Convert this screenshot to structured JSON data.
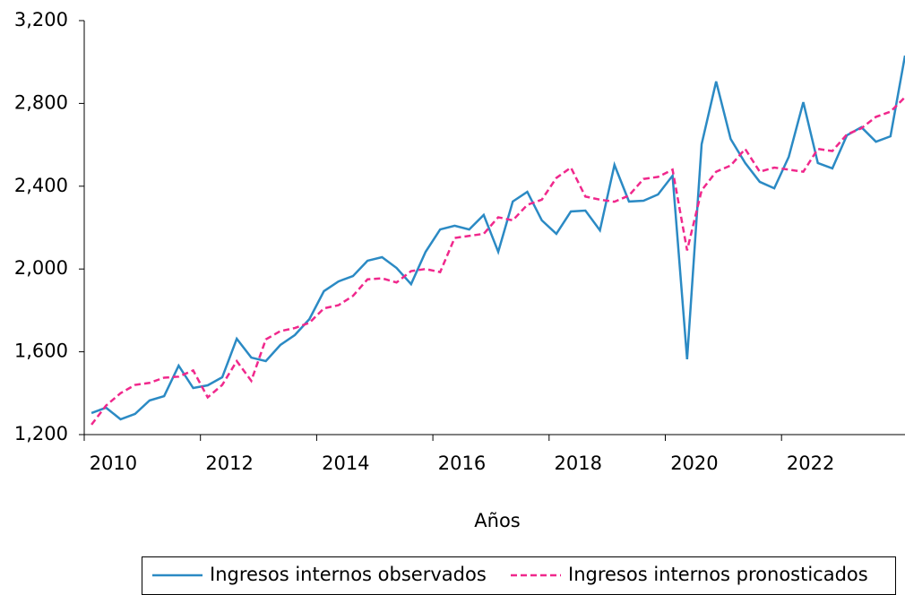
{
  "chart_data": {
    "type": "line",
    "x_label": "Años",
    "x": [
      2010,
      2010.25,
      2010.5,
      2010.75,
      2011,
      2011.25,
      2011.5,
      2011.75,
      2012,
      2012.25,
      2012.5,
      2012.75,
      2013,
      2013.25,
      2013.5,
      2013.75,
      2014,
      2014.25,
      2014.5,
      2014.75,
      2015,
      2015.25,
      2015.5,
      2015.75,
      2016,
      2016.25,
      2016.5,
      2016.75,
      2017,
      2017.25,
      2017.5,
      2017.75,
      2018,
      2018.25,
      2018.5,
      2018.75,
      2019,
      2019.25,
      2019.5,
      2019.75,
      2020,
      2020.25,
      2020.5,
      2020.75,
      2021,
      2021.25,
      2021.5,
      2021.75,
      2022,
      2022.25,
      2022.5,
      2022.75,
      2023,
      2023.25,
      2023.5,
      2023.75,
      2024
    ],
    "series": [
      {
        "name": "Ingresos internos observados",
        "color": "#2b8ac4",
        "dash": false,
        "values": [
          1304,
          1330,
          1274,
          1300,
          1365,
          1386,
          1533,
          1425,
          1438,
          1477,
          1663,
          1572,
          1555,
          1633,
          1681,
          1758,
          1893,
          1940,
          1966,
          2040,
          2057,
          2005,
          1927,
          2083,
          2191,
          2209,
          2191,
          2261,
          2083,
          2326,
          2373,
          2235,
          2170,
          2278,
          2282,
          2187,
          2503,
          2326,
          2330,
          2360,
          2451,
          1564,
          2603,
          2906,
          2628,
          2512,
          2421,
          2390,
          2542,
          2806,
          2512,
          2486,
          2646,
          2685,
          2615,
          2641,
          3031
        ]
      },
      {
        "name": "Ingresos internos pronosticados",
        "color": "#f0288c",
        "dash": true,
        "values": [
          1248,
          1340,
          1400,
          1440,
          1450,
          1475,
          1480,
          1510,
          1380,
          1440,
          1555,
          1460,
          1660,
          1700,
          1715,
          1740,
          1810,
          1825,
          1870,
          1950,
          1955,
          1935,
          1990,
          2000,
          1985,
          2150,
          2160,
          2170,
          2250,
          2235,
          2310,
          2335,
          2440,
          2490,
          2350,
          2335,
          2325,
          2355,
          2435,
          2445,
          2480,
          2090,
          2380,
          2470,
          2500,
          2580,
          2470,
          2490,
          2480,
          2470,
          2580,
          2570,
          2650,
          2680,
          2735,
          2760,
          2830
        ]
      }
    ],
    "xlim": [
      2009.875,
      2024
    ],
    "xticks": [
      2010,
      2012,
      2014,
      2016,
      2018,
      2020,
      2022
    ],
    "ylim": [
      1200,
      3200
    ],
    "yticks": [
      {
        "value": 1200,
        "label": "1,200"
      },
      {
        "value": 1600,
        "label": "1,600"
      },
      {
        "value": 2000,
        "label": "2,000"
      },
      {
        "value": 2400,
        "label": "2,400"
      },
      {
        "value": 2800,
        "label": "2,800"
      },
      {
        "value": 3200,
        "label": "3,200"
      }
    ],
    "legend": "bottom"
  }
}
